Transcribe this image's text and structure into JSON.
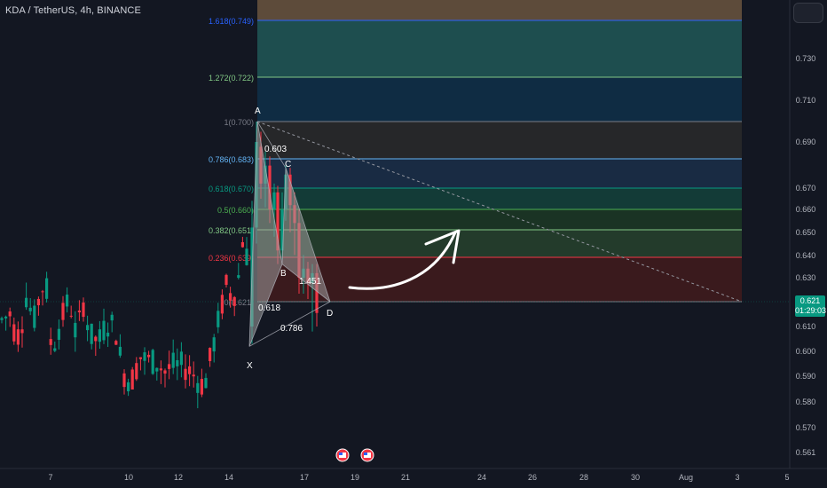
{
  "header": {
    "symbol_line": "KDA / TetherUS, 4h, BINANCE"
  },
  "price_scale": {
    "ticks": [
      "0.730",
      "0.710",
      "0.690",
      "0.670",
      "0.660",
      "0.650",
      "0.640",
      "0.630",
      "0.620",
      "0.610",
      "0.600",
      "0.590",
      "0.580",
      "0.570",
      "0.561"
    ],
    "current_price": "0.621",
    "countdown": "01:29:03",
    "current_color": "#089981"
  },
  "time_scale": {
    "ticks": [
      "7",
      "10",
      "12",
      "14",
      "17",
      "19",
      "21",
      "24",
      "26",
      "28",
      "30",
      "Aug",
      "3",
      "5"
    ]
  },
  "fib": {
    "levels": [
      {
        "label": "1.618(0.749)",
        "price": 0.749,
        "color": "#2962ff"
      },
      {
        "label": "1.272(0.722)",
        "price": 0.722,
        "color": "#81c784"
      },
      {
        "label": "1(0.700)",
        "price": 0.7,
        "color": "#787b86"
      },
      {
        "label": "0.786(0.683)",
        "price": 0.683,
        "color": "#64b5f6"
      },
      {
        "label": "0.618(0.670)",
        "price": 0.67,
        "color": "#089981"
      },
      {
        "label": "0.5(0.660)",
        "price": 0.66,
        "color": "#4caf50"
      },
      {
        "label": "0.382(0.651)",
        "price": 0.651,
        "color": "#81c784"
      },
      {
        "label": "0.236(0.639)",
        "price": 0.639,
        "color": "#f23645"
      },
      {
        "label": "0(0.621)",
        "price": 0.621,
        "color": "#787b86"
      }
    ],
    "colors": {
      "top": "#5d4b3a",
      "band_1": "#1e4e4f",
      "band_2": "#0f2c43",
      "band_3": "#262729",
      "band_4": "#192b43",
      "band_5": "#133b37",
      "band_6": "#1a3324",
      "band_7": "#233b2b",
      "band_8": "#3a1a1d"
    }
  },
  "pattern": {
    "points": [
      "X",
      "A",
      "B",
      "C",
      "D"
    ],
    "ratios": [
      "0.603",
      "0.618",
      "1.451",
      "0.786"
    ],
    "fill": "#9e9e9e"
  },
  "events": {
    "icons": [
      "flag-icon",
      "flag-icon"
    ]
  },
  "chart_data": {
    "type": "candlestick",
    "title": "KDA / TetherUS, 4h, BINANCE",
    "y_ticks": [
      0.73,
      0.71,
      0.69,
      0.67,
      0.66,
      0.65,
      0.64,
      0.63,
      0.62,
      0.61,
      0.6,
      0.59,
      0.58,
      0.57,
      0.561
    ],
    "x_ticks": [
      "7",
      "10",
      "12",
      "14",
      "17",
      "19",
      "21",
      "24",
      "26",
      "28",
      "30",
      "Aug",
      "3",
      "5"
    ],
    "last_price": 0.621,
    "harmonic_pattern": {
      "X": 0.602,
      "A": 0.7,
      "B": 0.636,
      "C": 0.679,
      "D": 0.621,
      "XB": 0.618,
      "AC": 0.603,
      "BD": 1.451,
      "XD": 0.786
    },
    "fib_levels": {
      "0": 0.621,
      "0.236": 0.639,
      "0.382": 0.651,
      "0.5": 0.66,
      "0.618": 0.67,
      "0.786": 0.683,
      "1": 0.7,
      "1.272": 0.722,
      "1.618": 0.749
    },
    "up_color": "#089981",
    "down_color": "#f23645"
  }
}
